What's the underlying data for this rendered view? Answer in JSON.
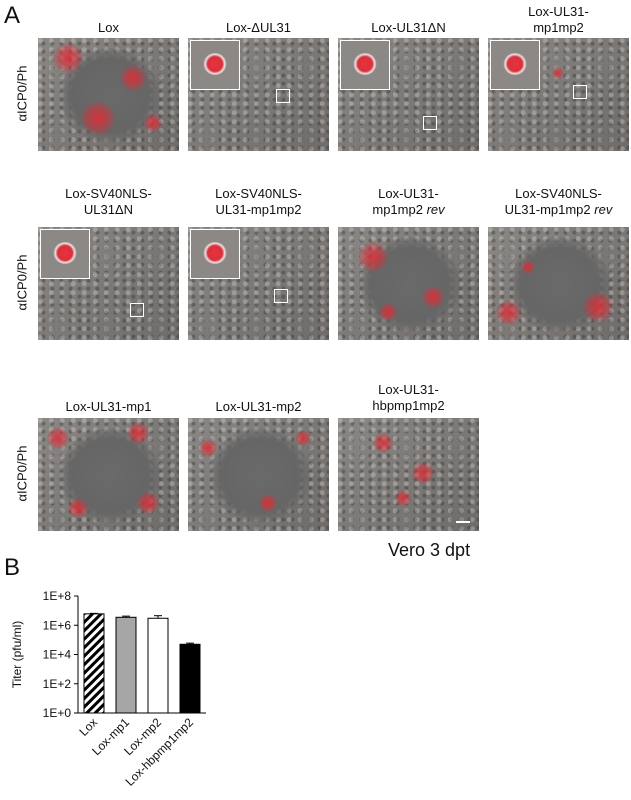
{
  "panel_a": {
    "letter": "A",
    "row_label": "αICP0/Ph",
    "rows": [
      [
        "Lox",
        "Lox-ΔUL31",
        "Lox-UL31ΔN",
        "Lox-UL31-\nmp1mp2"
      ],
      [
        "Lox-SV40NLS-\nUL31ΔN",
        "Lox-SV40NLS-\nUL31-mp1mp2",
        "Lox-UL31-\nmp1mp2 rev",
        "Lox-SV40NLS-\nUL31-mp1mp2 rev"
      ],
      [
        "Lox-UL31-mp1",
        "Lox-UL31-mp2",
        "Lox-UL31-\nhbpmp1mp2"
      ]
    ],
    "footer": "Vero 3 dpt"
  },
  "panel_b": {
    "letter": "B"
  },
  "chart_data": {
    "type": "bar",
    "ylabel": "Titer (pfu/ml)",
    "yscale": "log",
    "ylim": [
      1,
      100000000
    ],
    "yticks": [
      "1E+0",
      "1E+2",
      "1E+4",
      "1E+6",
      "1E+8"
    ],
    "categories": [
      "Lox",
      "Lox-mp1",
      "Lox-mp2",
      "Lox-hbpmp1mp2"
    ],
    "values": [
      6000000,
      3500000,
      3000000,
      50000
    ],
    "errors_upper": [
      6500000,
      4200000,
      4500000,
      60000
    ],
    "fills": [
      "hatched",
      "#a6a6a6",
      "#ffffff",
      "#000000"
    ]
  }
}
